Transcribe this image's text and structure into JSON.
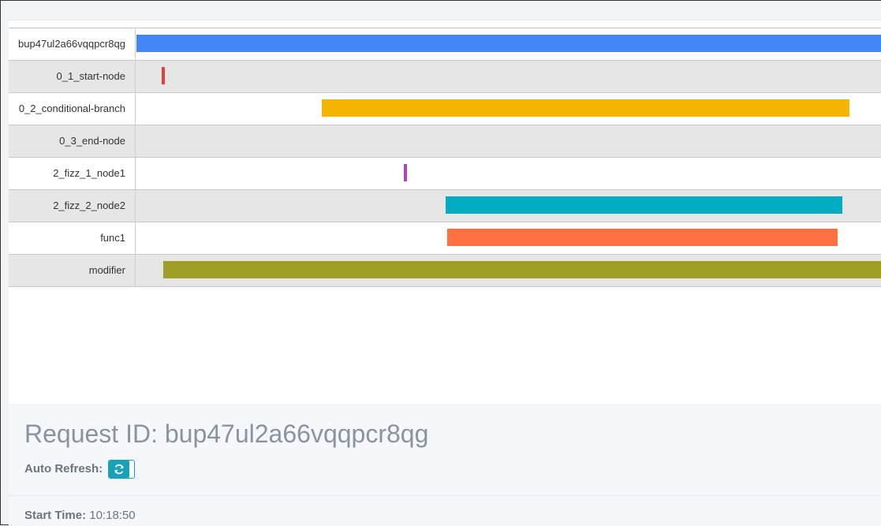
{
  "timeline": {
    "rows": [
      {
        "label": "bup47ul2a66vqqpcr8qg",
        "color": "#4285f4",
        "start": 0.0,
        "end": 1.0
      },
      {
        "label": "0_1_start-node",
        "color": "#db4437",
        "start": 0.034,
        "end": 0.038
      },
      {
        "label": "0_2_conditional-branch",
        "color": "#f4b400",
        "start": 0.249,
        "end": 0.957
      },
      {
        "label": "0_3_end-node",
        "color": "#9e9e9e",
        "start": null,
        "end": null
      },
      {
        "label": "2_fizz_1_node1",
        "color": "#ab47bc",
        "start": 0.359,
        "end": 0.363
      },
      {
        "label": "2_fizz_2_node2",
        "color": "#00acc1",
        "start": 0.415,
        "end": 0.947
      },
      {
        "label": "func1",
        "color": "#ff7043",
        "start": 0.417,
        "end": 0.941
      },
      {
        "label": "modifier",
        "color": "#9e9d24",
        "start": 0.036,
        "end": 1.0
      }
    ]
  },
  "request": {
    "title": "Request ID: bup47ul2a66vqqpcr8qg",
    "auto_refresh_label": "Auto Refresh:",
    "refresh_icon": "refresh-icon",
    "accent": "#17a2b8",
    "start_time_label": "Start Time:",
    "start_time_value": "10:18:50"
  }
}
